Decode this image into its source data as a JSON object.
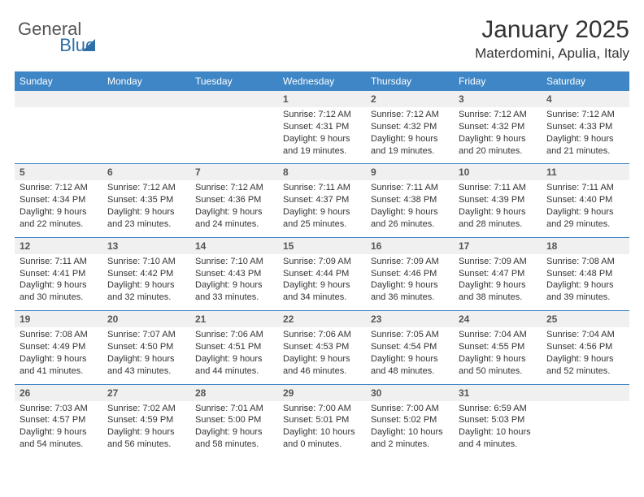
{
  "logo": {
    "general": "General",
    "blue": "Blue"
  },
  "title": "January 2025",
  "location": "Materdomini, Apulia, Italy",
  "colors": {
    "header_bg": "#3f86c6",
    "header_text": "#ffffff",
    "daynum_bg": "#f0f0f0",
    "border": "#3f86c6",
    "text": "#333333",
    "logo_gray": "#555555",
    "logo_blue": "#2f6fa8"
  },
  "day_headers": [
    "Sunday",
    "Monday",
    "Tuesday",
    "Wednesday",
    "Thursday",
    "Friday",
    "Saturday"
  ],
  "weeks": [
    [
      null,
      null,
      null,
      {
        "n": "1",
        "sr": "7:12 AM",
        "ss": "4:31 PM",
        "dl": "9 hours and 19 minutes."
      },
      {
        "n": "2",
        "sr": "7:12 AM",
        "ss": "4:32 PM",
        "dl": "9 hours and 19 minutes."
      },
      {
        "n": "3",
        "sr": "7:12 AM",
        "ss": "4:32 PM",
        "dl": "9 hours and 20 minutes."
      },
      {
        "n": "4",
        "sr": "7:12 AM",
        "ss": "4:33 PM",
        "dl": "9 hours and 21 minutes."
      }
    ],
    [
      {
        "n": "5",
        "sr": "7:12 AM",
        "ss": "4:34 PM",
        "dl": "9 hours and 22 minutes."
      },
      {
        "n": "6",
        "sr": "7:12 AM",
        "ss": "4:35 PM",
        "dl": "9 hours and 23 minutes."
      },
      {
        "n": "7",
        "sr": "7:12 AM",
        "ss": "4:36 PM",
        "dl": "9 hours and 24 minutes."
      },
      {
        "n": "8",
        "sr": "7:11 AM",
        "ss": "4:37 PM",
        "dl": "9 hours and 25 minutes."
      },
      {
        "n": "9",
        "sr": "7:11 AM",
        "ss": "4:38 PM",
        "dl": "9 hours and 26 minutes."
      },
      {
        "n": "10",
        "sr": "7:11 AM",
        "ss": "4:39 PM",
        "dl": "9 hours and 28 minutes."
      },
      {
        "n": "11",
        "sr": "7:11 AM",
        "ss": "4:40 PM",
        "dl": "9 hours and 29 minutes."
      }
    ],
    [
      {
        "n": "12",
        "sr": "7:11 AM",
        "ss": "4:41 PM",
        "dl": "9 hours and 30 minutes."
      },
      {
        "n": "13",
        "sr": "7:10 AM",
        "ss": "4:42 PM",
        "dl": "9 hours and 32 minutes."
      },
      {
        "n": "14",
        "sr": "7:10 AM",
        "ss": "4:43 PM",
        "dl": "9 hours and 33 minutes."
      },
      {
        "n": "15",
        "sr": "7:09 AM",
        "ss": "4:44 PM",
        "dl": "9 hours and 34 minutes."
      },
      {
        "n": "16",
        "sr": "7:09 AM",
        "ss": "4:46 PM",
        "dl": "9 hours and 36 minutes."
      },
      {
        "n": "17",
        "sr": "7:09 AM",
        "ss": "4:47 PM",
        "dl": "9 hours and 38 minutes."
      },
      {
        "n": "18",
        "sr": "7:08 AM",
        "ss": "4:48 PM",
        "dl": "9 hours and 39 minutes."
      }
    ],
    [
      {
        "n": "19",
        "sr": "7:08 AM",
        "ss": "4:49 PM",
        "dl": "9 hours and 41 minutes."
      },
      {
        "n": "20",
        "sr": "7:07 AM",
        "ss": "4:50 PM",
        "dl": "9 hours and 43 minutes."
      },
      {
        "n": "21",
        "sr": "7:06 AM",
        "ss": "4:51 PM",
        "dl": "9 hours and 44 minutes."
      },
      {
        "n": "22",
        "sr": "7:06 AM",
        "ss": "4:53 PM",
        "dl": "9 hours and 46 minutes."
      },
      {
        "n": "23",
        "sr": "7:05 AM",
        "ss": "4:54 PM",
        "dl": "9 hours and 48 minutes."
      },
      {
        "n": "24",
        "sr": "7:04 AM",
        "ss": "4:55 PM",
        "dl": "9 hours and 50 minutes."
      },
      {
        "n": "25",
        "sr": "7:04 AM",
        "ss": "4:56 PM",
        "dl": "9 hours and 52 minutes."
      }
    ],
    [
      {
        "n": "26",
        "sr": "7:03 AM",
        "ss": "4:57 PM",
        "dl": "9 hours and 54 minutes."
      },
      {
        "n": "27",
        "sr": "7:02 AM",
        "ss": "4:59 PM",
        "dl": "9 hours and 56 minutes."
      },
      {
        "n": "28",
        "sr": "7:01 AM",
        "ss": "5:00 PM",
        "dl": "9 hours and 58 minutes."
      },
      {
        "n": "29",
        "sr": "7:00 AM",
        "ss": "5:01 PM",
        "dl": "10 hours and 0 minutes."
      },
      {
        "n": "30",
        "sr": "7:00 AM",
        "ss": "5:02 PM",
        "dl": "10 hours and 2 minutes."
      },
      {
        "n": "31",
        "sr": "6:59 AM",
        "ss": "5:03 PM",
        "dl": "10 hours and 4 minutes."
      },
      null
    ]
  ],
  "labels": {
    "sunrise": "Sunrise:",
    "sunset": "Sunset:",
    "daylight": "Daylight:"
  },
  "typography": {
    "title_fontsize": 30,
    "location_fontsize": 17,
    "header_fontsize": 12,
    "daynum_fontsize": 12,
    "info_fontsize": 11
  }
}
